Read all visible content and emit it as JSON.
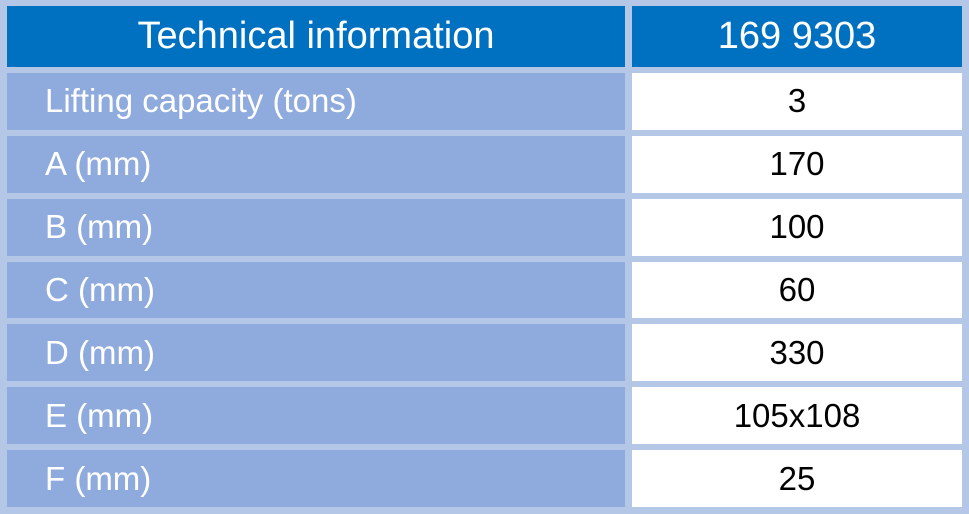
{
  "table": {
    "header": [
      "Technical information",
      "169 9303"
    ],
    "rows": [
      [
        "Lifting capacity (tons)",
        3
      ],
      [
        "A (mm)",
        170
      ],
      [
        "B (mm)",
        100
      ],
      [
        "C (mm)",
        60
      ],
      [
        "D (mm)",
        330
      ],
      [
        "E (mm)",
        "105x108"
      ],
      [
        "F (mm)",
        25
      ]
    ]
  }
}
